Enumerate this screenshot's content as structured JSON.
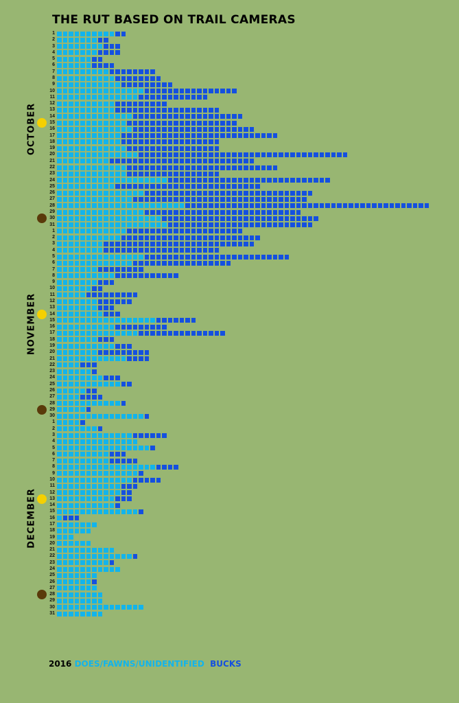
{
  "chart_data": {
    "type": "bar",
    "orientation": "horizontal-stacked-unit-squares",
    "title": "THE RUT BASED ON TRAIL CAMERAS",
    "year": "2016",
    "legend": {
      "position": "bottom-left",
      "entries": [
        {
          "name": "DOES/FAWNS/UNIDENTIFIED",
          "color": "#12b4ec"
        },
        {
          "name": "BUCKS",
          "color": "#1450e0"
        }
      ]
    },
    "months": [
      {
        "name": "OCTOBER",
        "does": [
          10,
          7,
          8,
          7,
          6,
          6,
          9,
          10,
          11,
          15,
          14,
          10,
          10,
          13,
          12,
          13,
          11,
          11,
          12,
          14,
          9,
          12,
          12,
          19,
          10,
          15,
          13,
          22,
          15,
          18,
          19
        ],
        "bucks": [
          2,
          2,
          3,
          4,
          2,
          4,
          8,
          8,
          9,
          16,
          12,
          9,
          18,
          19,
          19,
          21,
          27,
          17,
          16,
          36,
          25,
          26,
          16,
          28,
          25,
          29,
          30,
          42,
          27,
          27,
          25
        ],
        "full_moon_day": 15,
        "new_moon_day": 30
      },
      {
        "name": "NOVEMBER",
        "does": [
          12,
          11,
          8,
          8,
          15,
          13,
          7,
          10,
          7,
          6,
          5,
          7,
          7,
          8,
          17,
          10,
          14,
          7,
          10,
          7,
          12,
          4,
          6,
          8,
          11,
          5,
          4,
          11,
          5,
          15
        ],
        "bucks": [
          20,
          24,
          26,
          20,
          25,
          17,
          8,
          11,
          3,
          2,
          9,
          6,
          3,
          3,
          7,
          9,
          15,
          3,
          3,
          9,
          4,
          3,
          1,
          3,
          2,
          2,
          4,
          1,
          1,
          1
        ],
        "full_moon_day": 14,
        "new_moon_day": 29
      },
      {
        "name": "DECEMBER",
        "does": [
          4,
          7,
          13,
          14,
          16,
          9,
          9,
          17,
          14,
          13,
          11,
          11,
          10,
          10,
          14,
          1,
          7,
          6,
          3,
          6,
          10,
          13,
          9,
          11,
          7,
          6,
          7,
          8,
          8,
          15,
          8
        ],
        "bucks": [
          1,
          1,
          6,
          0,
          1,
          3,
          5,
          4,
          1,
          5,
          3,
          2,
          3,
          1,
          1,
          3,
          0,
          0,
          0,
          0,
          0,
          1,
          1,
          0,
          0,
          1,
          0,
          0,
          0,
          0,
          0
        ],
        "full_moon_day": 13,
        "new_moon_day": 28
      }
    ],
    "colors": {
      "does": "#12b4ec",
      "bucks": "#1450e0",
      "full_moon": "#f5d000",
      "new_moon": "#5a3a0a",
      "background": "#98b672"
    }
  }
}
